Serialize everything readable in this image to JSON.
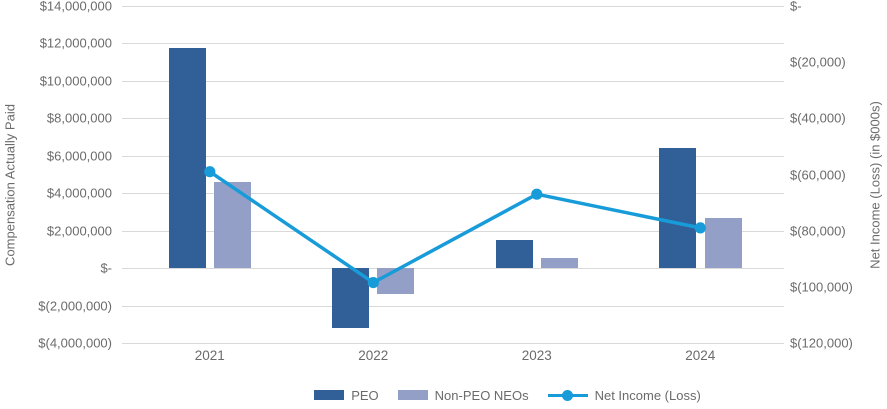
{
  "chart_data": {
    "type": "combo-bar-line",
    "categories": [
      "2021",
      "2022",
      "2023",
      "2024"
    ],
    "series": [
      {
        "name": "PEO",
        "type": "bar",
        "axis": "left",
        "color": "#315F97",
        "values": [
          11750000,
          -3200000,
          1500000,
          6400000
        ]
      },
      {
        "name": "Non-PEO NEOs",
        "type": "bar",
        "axis": "left",
        "color": "#949FC7",
        "values": [
          4600000,
          -1400000,
          550000,
          2700000
        ]
      },
      {
        "name": "Net Income (Loss)",
        "type": "line",
        "axis": "right",
        "color": "#189CD9",
        "values": [
          -59000,
          -98500,
          -67000,
          -79000
        ]
      }
    ],
    "left_axis": {
      "title": "Compensation Actually Paid",
      "max": 14000000,
      "min": -4000000,
      "step": 2000000,
      "tick_labels": [
        "$14,000,000",
        "$12,000,000",
        "$10,000,000",
        "$8,000,000",
        "$6,000,000",
        "$4,000,000",
        "$2,000,000",
        "$-",
        "$(2,000,000)",
        "$(4,000,000)"
      ]
    },
    "right_axis": {
      "title": "Net Income (Loss) (in $000s)",
      "max": 0,
      "min": -120000,
      "step": 20000,
      "tick_labels": [
        "$-",
        "$(20,000)",
        "$(40,000)",
        "$(60,000)",
        "$(80,000)",
        "$(100,000)",
        "$(120,000)"
      ]
    },
    "legend": [
      {
        "label": "PEO",
        "swatch": "bar",
        "color": "#315F97"
      },
      {
        "label": "Non-PEO NEOs",
        "swatch": "bar",
        "color": "#949FC7"
      },
      {
        "label": "Net Income (Loss)",
        "swatch": "line-marker",
        "color": "#189CD9"
      }
    ],
    "grid": true,
    "grid_color": "#D9D9D9",
    "text_color": "#6B6B6B",
    "legend_position": "bottom"
  }
}
